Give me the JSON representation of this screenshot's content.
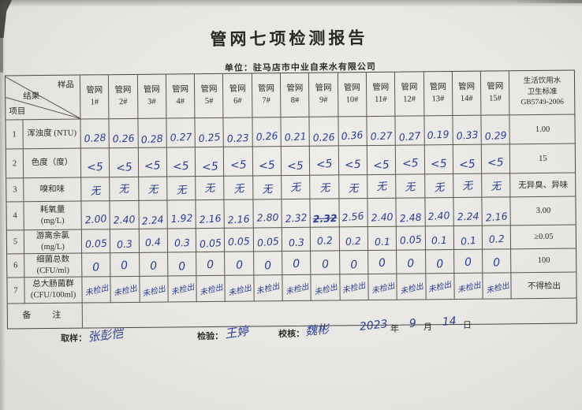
{
  "title": "管网七项检测报告",
  "unit_line": "单位：驻马店市中业自来水有限公司",
  "table": {
    "corner": {
      "sample": "样品",
      "result": "结果",
      "item": "项目"
    },
    "columns": [
      "管网\n1#",
      "管网\n2#",
      "管网\n3#",
      "管网\n4#",
      "管网\n5#",
      "管网\n6#",
      "管网\n7#",
      "管网\n8#",
      "管网\n9#",
      "管网\n10#",
      "管网\n11#",
      "管网\n12#",
      "管网\n13#",
      "管网\n14#",
      "管网\n15#"
    ],
    "standard_header": "生活饮用水\n卫生标准\nGB5749-2006",
    "rows": [
      {
        "no": "1",
        "name": "浑浊度 (NTU)",
        "standard": "1.00",
        "values": [
          "0.28",
          "0.26",
          "0.28",
          "0.27",
          "0.25",
          "0.23",
          "0.26",
          "0.21",
          "0.26",
          "0.36",
          "0.27",
          "0.27",
          "0.19",
          "0.33",
          "0.29"
        ]
      },
      {
        "no": "2",
        "name": "色度（度）",
        "standard": "15",
        "values": [
          "<5",
          "<5",
          "<5",
          "<5",
          "<5",
          "<5",
          "<5",
          "<5",
          "<5",
          "<5",
          "<5",
          "<5",
          "<5",
          "<5",
          "<5"
        ]
      },
      {
        "no": "3",
        "name": "嗅和味",
        "standard": "无异臭、异味",
        "values": [
          "无",
          "无",
          "无",
          "无",
          "无",
          "无",
          "无",
          "无",
          "无",
          "无",
          "无",
          "无",
          "无",
          "无",
          "无"
        ]
      },
      {
        "no": "4",
        "name": "耗氧量\n(mg/L)",
        "standard": "3.00",
        "values": [
          "2.00",
          "2.40",
          "2.24",
          "1.92",
          "2.16",
          "2.16",
          "2.80",
          "2.32",
          "2.32",
          "2.56",
          "2.40",
          "2.48",
          "2.40",
          "2.24",
          "2.16"
        ]
      },
      {
        "no": "5",
        "name": "游离余氯\n(mg/L)",
        "standard": "≥0.05",
        "values": [
          "0.05",
          "0.3",
          "0.4",
          "0.3",
          "0.05",
          "0.05",
          "0.05",
          "0.3",
          "0.2",
          "0.2",
          "0.1",
          "0.05",
          "0.1",
          "0.1",
          "0.2"
        ]
      },
      {
        "no": "6",
        "name": "细菌总数\n(CFU/ml)",
        "standard": "100",
        "values": [
          "0",
          "0",
          "0",
          "0",
          "0",
          "0",
          "0",
          "0",
          "0",
          "0",
          "0",
          "0",
          "0",
          "0",
          "0"
        ]
      },
      {
        "no": "7",
        "name": "总大肠菌群\n(CFU/100ml)",
        "standard": "不得检出",
        "values": [
          "未检出",
          "未检出",
          "未检出",
          "未检出",
          "未检出",
          "未检出",
          "未检出",
          "未检出",
          "未检出",
          "未检出",
          "未检出",
          "未检出",
          "未检出",
          "未检出",
          "未检出"
        ]
      }
    ],
    "strike_cell": {
      "row": 3,
      "col": 8
    },
    "remark_label": "备　注",
    "remark_value": ""
  },
  "footer": {
    "sampler_label": "取样：",
    "sampler_name": "张彭恺",
    "inspector_label": "检验：",
    "inspector_name": "王婷",
    "checker_label": "校核：",
    "checker_name": "魏彬",
    "date_year": "2023",
    "date_year_unit": "年",
    "date_month": "9",
    "date_month_unit": "月",
    "date_day": "14",
    "date_day_unit": "日"
  }
}
